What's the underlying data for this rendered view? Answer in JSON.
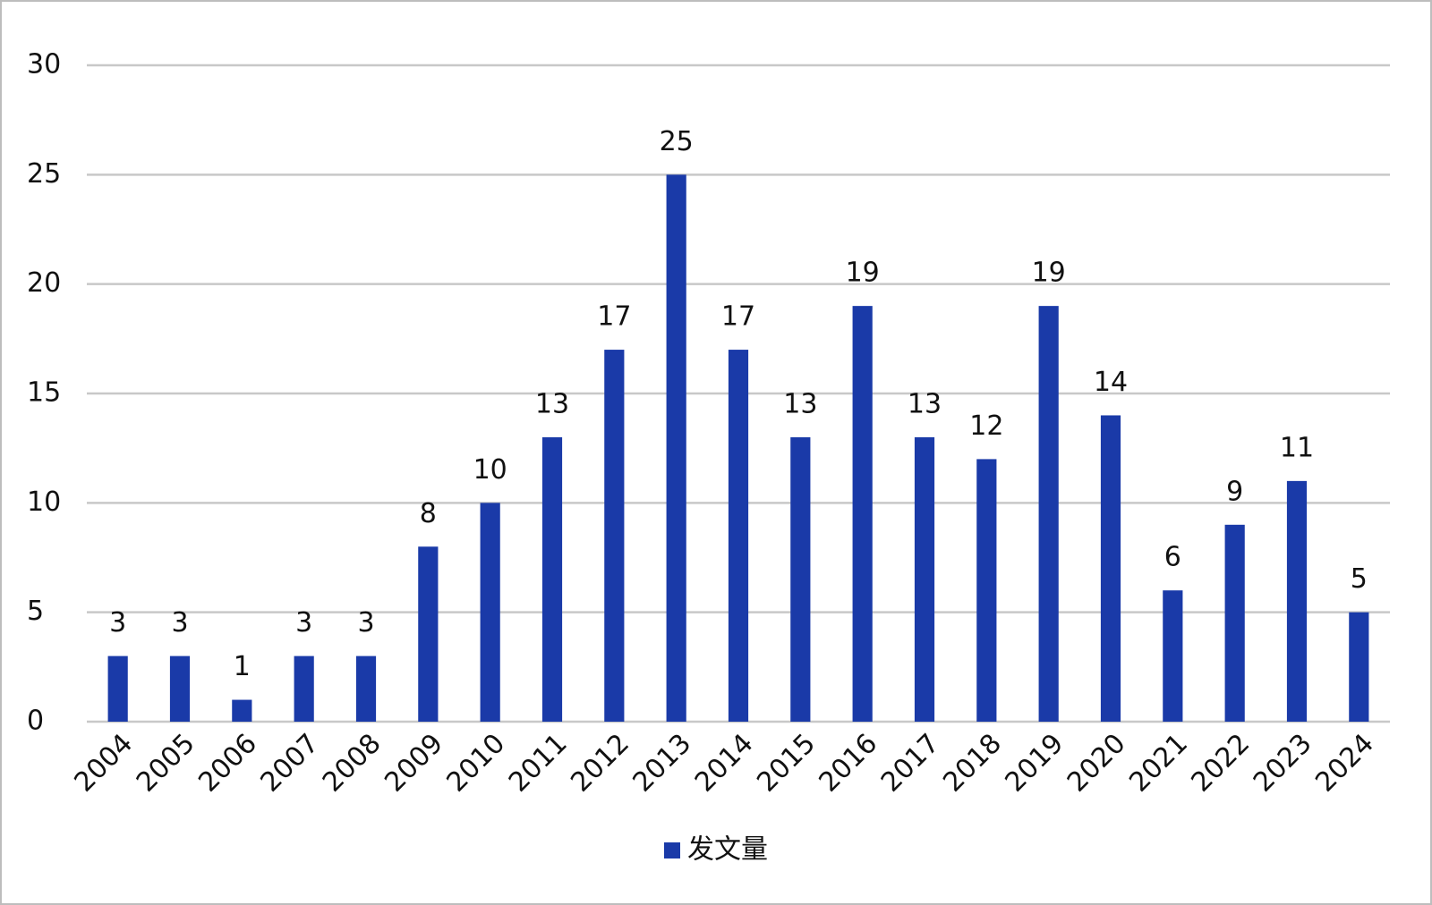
{
  "chart_data": {
    "type": "bar",
    "categories": [
      "2004",
      "2005",
      "2006",
      "2007",
      "2008",
      "2009",
      "2010",
      "2011",
      "2012",
      "2013",
      "2014",
      "2015",
      "2016",
      "2017",
      "2018",
      "2019",
      "2020",
      "2021",
      "2022",
      "2023",
      "2024"
    ],
    "series": [
      {
        "name": "发文量",
        "color": "#1a3aa8",
        "values": [
          3,
          3,
          1,
          3,
          3,
          8,
          10,
          13,
          17,
          25,
          17,
          13,
          19,
          13,
          12,
          19,
          14,
          6,
          9,
          11,
          5
        ]
      }
    ],
    "ylim": [
      0,
      30
    ],
    "yticks": [
      0,
      5,
      10,
      15,
      20,
      25,
      30
    ],
    "grid": true,
    "legend": "bottom",
    "data_labels": true
  }
}
